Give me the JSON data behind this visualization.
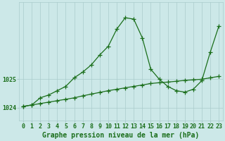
{
  "xlabel": "Graphe pression niveau de la mer (hPa)",
  "hours": [
    0,
    1,
    2,
    3,
    4,
    5,
    6,
    7,
    8,
    9,
    10,
    11,
    12,
    13,
    14,
    15,
    16,
    17,
    18,
    19,
    20,
    21,
    22,
    23
  ],
  "line1": [
    1024.05,
    1024.1,
    1024.35,
    1024.45,
    1024.6,
    1024.75,
    1025.05,
    1025.25,
    1025.5,
    1025.85,
    1026.15,
    1026.75,
    1027.15,
    1027.1,
    1026.45,
    1025.35,
    1025.0,
    1024.75,
    1024.6,
    1024.55,
    1024.65,
    1024.95,
    1025.95,
    1026.85
  ],
  "line2": [
    1024.05,
    1024.1,
    1024.15,
    1024.2,
    1024.25,
    1024.3,
    1024.35,
    1024.42,
    1024.48,
    1024.54,
    1024.6,
    1024.65,
    1024.7,
    1024.75,
    1024.8,
    1024.85,
    1024.88,
    1024.9,
    1024.93,
    1024.96,
    1024.98,
    1025.0,
    1025.05,
    1025.1
  ],
  "line_color": "#1a6e1a",
  "bg_color": "#cce8e8",
  "grid_color": "#aacccc",
  "text_color": "#1a6e1a",
  "ylim_min": 1023.55,
  "ylim_max": 1027.7,
  "yticks": [
    1024,
    1025
  ],
  "marker": "+",
  "markersize": 4,
  "linewidth": 0.9,
  "xlabel_fontsize": 7,
  "tick_fontsize": 6
}
